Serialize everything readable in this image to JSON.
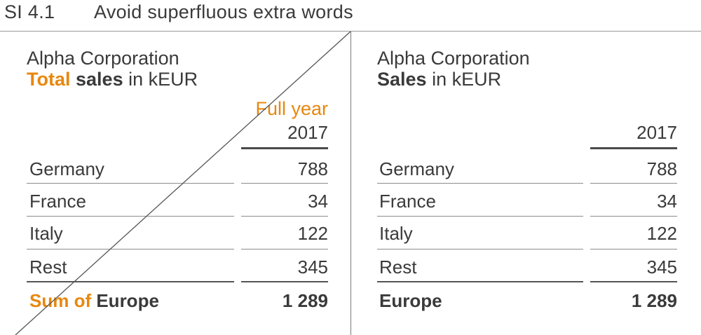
{
  "header": {
    "id": "SI 4.1",
    "title": "Avoid superfluous extra words"
  },
  "colors": {
    "accent": "#e8870e",
    "text": "#3a3a3a",
    "rule": "#8c8c8c"
  },
  "left_table": {
    "company": "Alpha Corporation",
    "subtitle_highlight": "Total",
    "subtitle_bold": "sales",
    "subtitle_rest": "in kEUR",
    "column_extra": "Full year",
    "column_year": "2017",
    "rows": [
      {
        "label": "Germany",
        "value": "788"
      },
      {
        "label": "France",
        "value": "34"
      },
      {
        "label": "Italy",
        "value": "122"
      },
      {
        "label": "Rest",
        "value": "345"
      }
    ],
    "total_highlight": "Sum of",
    "total_label": "Europe",
    "total_value": "1 289"
  },
  "right_table": {
    "company": "Alpha Corporation",
    "subtitle_bold": "Sales",
    "subtitle_rest": "in kEUR",
    "column_year": "2017",
    "rows": [
      {
        "label": "Germany",
        "value": "788"
      },
      {
        "label": "France",
        "value": "34"
      },
      {
        "label": "Italy",
        "value": "122"
      },
      {
        "label": "Rest",
        "value": "345"
      }
    ],
    "total_label": "Europe",
    "total_value": "1 289"
  }
}
